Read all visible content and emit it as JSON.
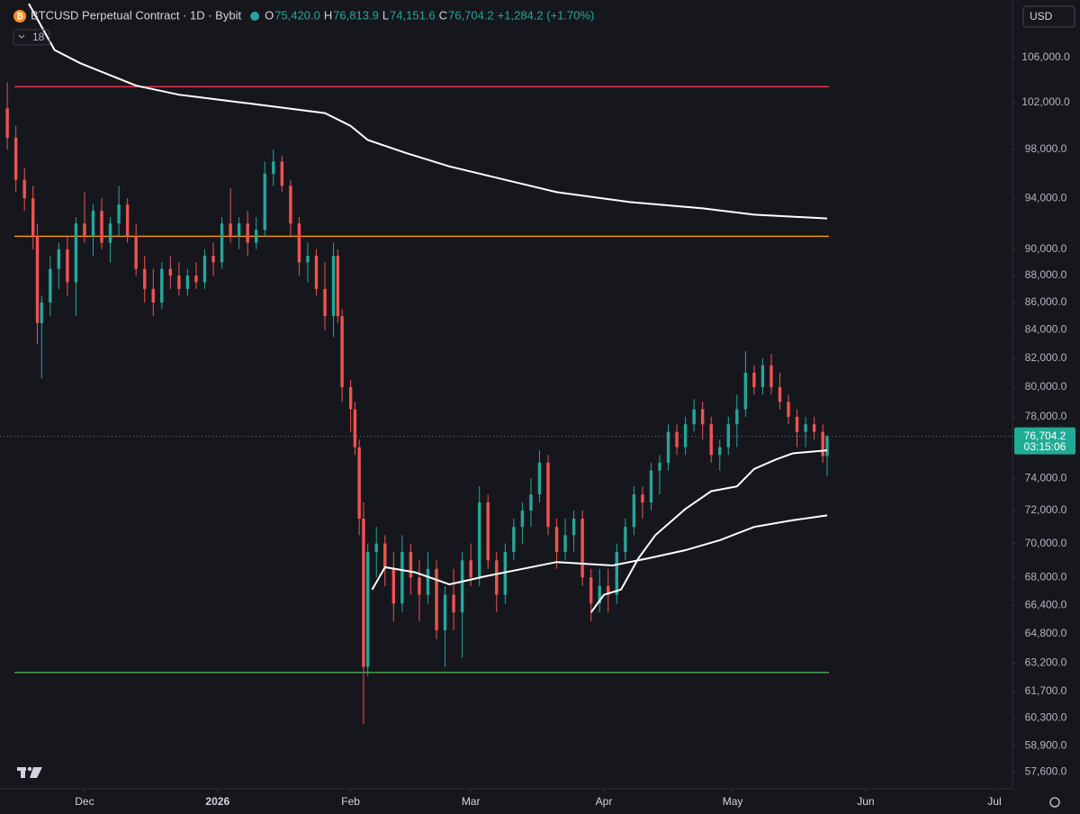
{
  "chart_data": {
    "type": "candlestick",
    "title": "BTCUSD Perpetual Contract · 1D · Bybit",
    "legend": [
      {
        "label": "O",
        "value": "75,420.0"
      },
      {
        "label": "H",
        "value": "76,813.9"
      },
      {
        "label": "L",
        "value": "74,151.6"
      },
      {
        "label": "C",
        "value": "76,704.2"
      }
    ],
    "change": "+1,284.2 (+1.70%)",
    "indicator_count": "18",
    "currency": "USD",
    "countdown": "03:15:06",
    "up_color": "#26a69a",
    "down_color": "#ef5350",
    "log_scale": true,
    "x": [
      0,
      2,
      4,
      6,
      7,
      8,
      10,
      12,
      14,
      16,
      18,
      20,
      22,
      24,
      26,
      28,
      30,
      32,
      34,
      36,
      38,
      40,
      42,
      44,
      46,
      48,
      50,
      52,
      54,
      56,
      58,
      60,
      62,
      64,
      66,
      68,
      70,
      72,
      74,
      76,
      77,
      78,
      80,
      81,
      82,
      83,
      84,
      86,
      88,
      90,
      92,
      94,
      96,
      98,
      100,
      102,
      104,
      106,
      108,
      110,
      112,
      114,
      116,
      118,
      120,
      122,
      124,
      126,
      128,
      130,
      132,
      134,
      136,
      138,
      140,
      142,
      144,
      146,
      148,
      150,
      152,
      154,
      156,
      158,
      160,
      162,
      164,
      166,
      168,
      170,
      172,
      174,
      176,
      178,
      180,
      182,
      184,
      186,
      188,
      190,
      191
    ],
    "open": [
      101500,
      99000,
      95500,
      94000,
      91000,
      84500,
      86000,
      88500,
      90000,
      87500,
      92000,
      91000,
      93000,
      90500,
      92000,
      93500,
      91000,
      88500,
      87000,
      86000,
      88500,
      88000,
      87000,
      88000,
      87500,
      89500,
      89000,
      92000,
      91000,
      92000,
      90500,
      91500,
      96000,
      97000,
      95000,
      92000,
      89000,
      89500,
      87000,
      85000,
      89500,
      85000,
      80000,
      78500,
      76000,
      71500,
      63000,
      69500,
      70000,
      68500,
      66500,
      69500,
      68000,
      67000,
      68500,
      65000,
      67000,
      66000,
      69000,
      68000,
      72500,
      69000,
      67000,
      69500,
      71000,
      72000,
      73000,
      75000,
      71000,
      69500,
      70500,
      71500,
      68000,
      66500,
      67500,
      67000,
      69500,
      71000,
      73000,
      72500,
      74500,
      75000,
      77000,
      76000,
      77500,
      78500,
      77500,
      75500,
      76000,
      77500,
      78500,
      81000,
      80000,
      81500,
      80000,
      79000,
      78000,
      77000,
      77500,
      77000,
      75420
    ],
    "high": [
      103800,
      100000,
      96500,
      95000,
      92000,
      86500,
      89500,
      90500,
      91000,
      92500,
      94500,
      93500,
      94000,
      92500,
      95000,
      94000,
      92000,
      89500,
      88500,
      89000,
      89500,
      89000,
      88500,
      89000,
      90000,
      90500,
      92500,
      94800,
      92500,
      93000,
      92500,
      97000,
      98000,
      97500,
      95500,
      92500,
      90500,
      90000,
      89000,
      90500,
      90000,
      85500,
      80500,
      79000,
      76500,
      72500,
      70000,
      71000,
      70500,
      69500,
      70500,
      70000,
      69000,
      69500,
      69000,
      67500,
      68500,
      69500,
      70000,
      73500,
      73000,
      69500,
      70000,
      71500,
      72500,
      74000,
      75800,
      75500,
      71500,
      71500,
      72000,
      72000,
      68500,
      68500,
      68500,
      70000,
      71500,
      73500,
      73500,
      75000,
      75500,
      77500,
      77500,
      78000,
      79200,
      79000,
      78000,
      76500,
      78000,
      79500,
      82500,
      81500,
      82000,
      82300,
      81000,
      79500,
      78500,
      78000,
      78000,
      77500,
      76813.9
    ],
    "low": [
      98000,
      94500,
      93000,
      90000,
      83000,
      80600,
      85000,
      87000,
      86500,
      85000,
      90500,
      89500,
      90000,
      89000,
      91000,
      90500,
      88000,
      86000,
      85000,
      85500,
      87000,
      86500,
      86500,
      87000,
      87000,
      88000,
      88500,
      90500,
      90000,
      89500,
      90000,
      91000,
      95000,
      94500,
      91000,
      88000,
      87500,
      86500,
      84000,
      83500,
      84500,
      79000,
      77000,
      75500,
      70500,
      60000,
      62500,
      68000,
      67500,
      65500,
      66000,
      67000,
      65500,
      66500,
      64500,
      63000,
      65000,
      63500,
      67500,
      67500,
      68500,
      66000,
      66500,
      69000,
      70000,
      71000,
      72500,
      70500,
      68500,
      69000,
      69500,
      67500,
      65500,
      66000,
      66000,
      66500,
      69000,
      70500,
      71500,
      72000,
      73000,
      74500,
      75500,
      75500,
      77000,
      76500,
      75000,
      74500,
      75500,
      76000,
      78000,
      79500,
      79500,
      79500,
      78500,
      77500,
      76000,
      76000,
      76500,
      75000,
      74151.6
    ],
    "close": [
      99000,
      95500,
      94000,
      91000,
      84500,
      86000,
      88500,
      90000,
      87500,
      92000,
      91000,
      93000,
      90500,
      92000,
      93500,
      91000,
      88500,
      87000,
      86000,
      88500,
      88000,
      87000,
      88000,
      87500,
      89500,
      89000,
      92000,
      91000,
      92000,
      90500,
      91500,
      96000,
      97000,
      95000,
      92000,
      89000,
      89500,
      87000,
      85000,
      89500,
      85000,
      80000,
      78500,
      76000,
      71500,
      63000,
      69500,
      70000,
      68500,
      66500,
      69500,
      68000,
      67000,
      68500,
      65000,
      67000,
      66000,
      69000,
      68000,
      72500,
      69000,
      67000,
      69500,
      71000,
      72000,
      73000,
      75000,
      71000,
      69500,
      70500,
      71500,
      68000,
      66500,
      67500,
      67000,
      69500,
      71000,
      73000,
      72500,
      74500,
      75000,
      77000,
      76000,
      77500,
      78500,
      77500,
      75500,
      76000,
      77500,
      78500,
      81000,
      80000,
      81500,
      80000,
      79000,
      78000,
      77000,
      77500,
      77000,
      75420,
      76704.2
    ],
    "value_labels": {
      "last_close": "76,704.2"
    },
    "lines": [
      {
        "color": "#ffffff",
        "x": [
          5,
          11,
          17,
          30,
          40,
          57,
          74,
          80,
          84,
          93,
          103,
          116,
          128,
          145,
          162,
          174,
          191
        ],
        "values": [
          111000,
          106700,
          105500,
          103500,
          102700,
          101900,
          101100,
          100000,
          98800,
          97700,
          96600,
          95500,
          94500,
          93700,
          93200,
          92700,
          92400
        ]
      },
      {
        "color": "#ffffff",
        "x": [
          85,
          88,
          95,
          103,
          112,
          120,
          128,
          141,
          149,
          158,
          166,
          174,
          183,
          191
        ],
        "values": [
          67300,
          68600,
          68300,
          67600,
          68100,
          68500,
          68900,
          68700,
          69100,
          69600,
          70200,
          71000,
          71400,
          71700
        ]
      },
      {
        "color": "#ffffff",
        "x": [
          136,
          139,
          143,
          147,
          151,
          158,
          164,
          170,
          174,
          179,
          183,
          191
        ],
        "values": [
          66000,
          67000,
          67300,
          69100,
          70500,
          72100,
          73200,
          73500,
          74600,
          75200,
          75600,
          75800
        ]
      }
    ],
    "levels": [
      {
        "color": "#f23645",
        "value": 103400,
        "x": [
          0,
          191
        ]
      },
      {
        "color": "#ff9800",
        "value": 91000,
        "x": [
          0,
          191
        ]
      },
      {
        "color": "#4caf50",
        "value": 62700,
        "x": [
          0,
          191
        ]
      }
    ],
    "xlim": [
      -1.7,
      234.2
    ],
    "ylim": [
      56770,
      111350
    ],
    "xticks": [
      {
        "value": 18,
        "label": "Dec"
      },
      {
        "value": 49,
        "label": "2026"
      },
      {
        "value": 80,
        "label": "Feb"
      },
      {
        "value": 108,
        "label": "Mar"
      },
      {
        "value": 139,
        "label": "Apr"
      },
      {
        "value": 169,
        "label": "May"
      },
      {
        "value": 200,
        "label": "Jun"
      },
      {
        "value": 230,
        "label": "Jul"
      }
    ],
    "yticks": [
      {
        "value": 106000,
        "label": "106,000.0"
      },
      {
        "value": 102000,
        "label": "102,000.0"
      },
      {
        "value": 98000,
        "label": "98,000.0"
      },
      {
        "value": 94000,
        "label": "94,000.0"
      },
      {
        "value": 90000,
        "label": "90,000.0"
      },
      {
        "value": 88000,
        "label": "88,000.0"
      },
      {
        "value": 86000,
        "label": "86,000.0"
      },
      {
        "value": 84000,
        "label": "84,000.0"
      },
      {
        "value": 82000,
        "label": "82,000.0"
      },
      {
        "value": 80000,
        "label": "80,000.0"
      },
      {
        "value": 78000,
        "label": "78,000.0"
      },
      {
        "value": 74000,
        "label": "74,000.0"
      },
      {
        "value": 72000,
        "label": "72,000.0"
      },
      {
        "value": 70000,
        "label": "70,000.0"
      },
      {
        "value": 68000,
        "label": "68,000.0"
      },
      {
        "value": 66400,
        "label": "66,400.0"
      },
      {
        "value": 64800,
        "label": "64,800.0"
      },
      {
        "value": 63200,
        "label": "63,200.0"
      },
      {
        "value": 61700,
        "label": "61,700.0"
      },
      {
        "value": 60300,
        "label": "60,300.0"
      },
      {
        "value": 58900,
        "label": "58,900.0"
      },
      {
        "value": 57600,
        "label": "57,600.0"
      }
    ]
  }
}
